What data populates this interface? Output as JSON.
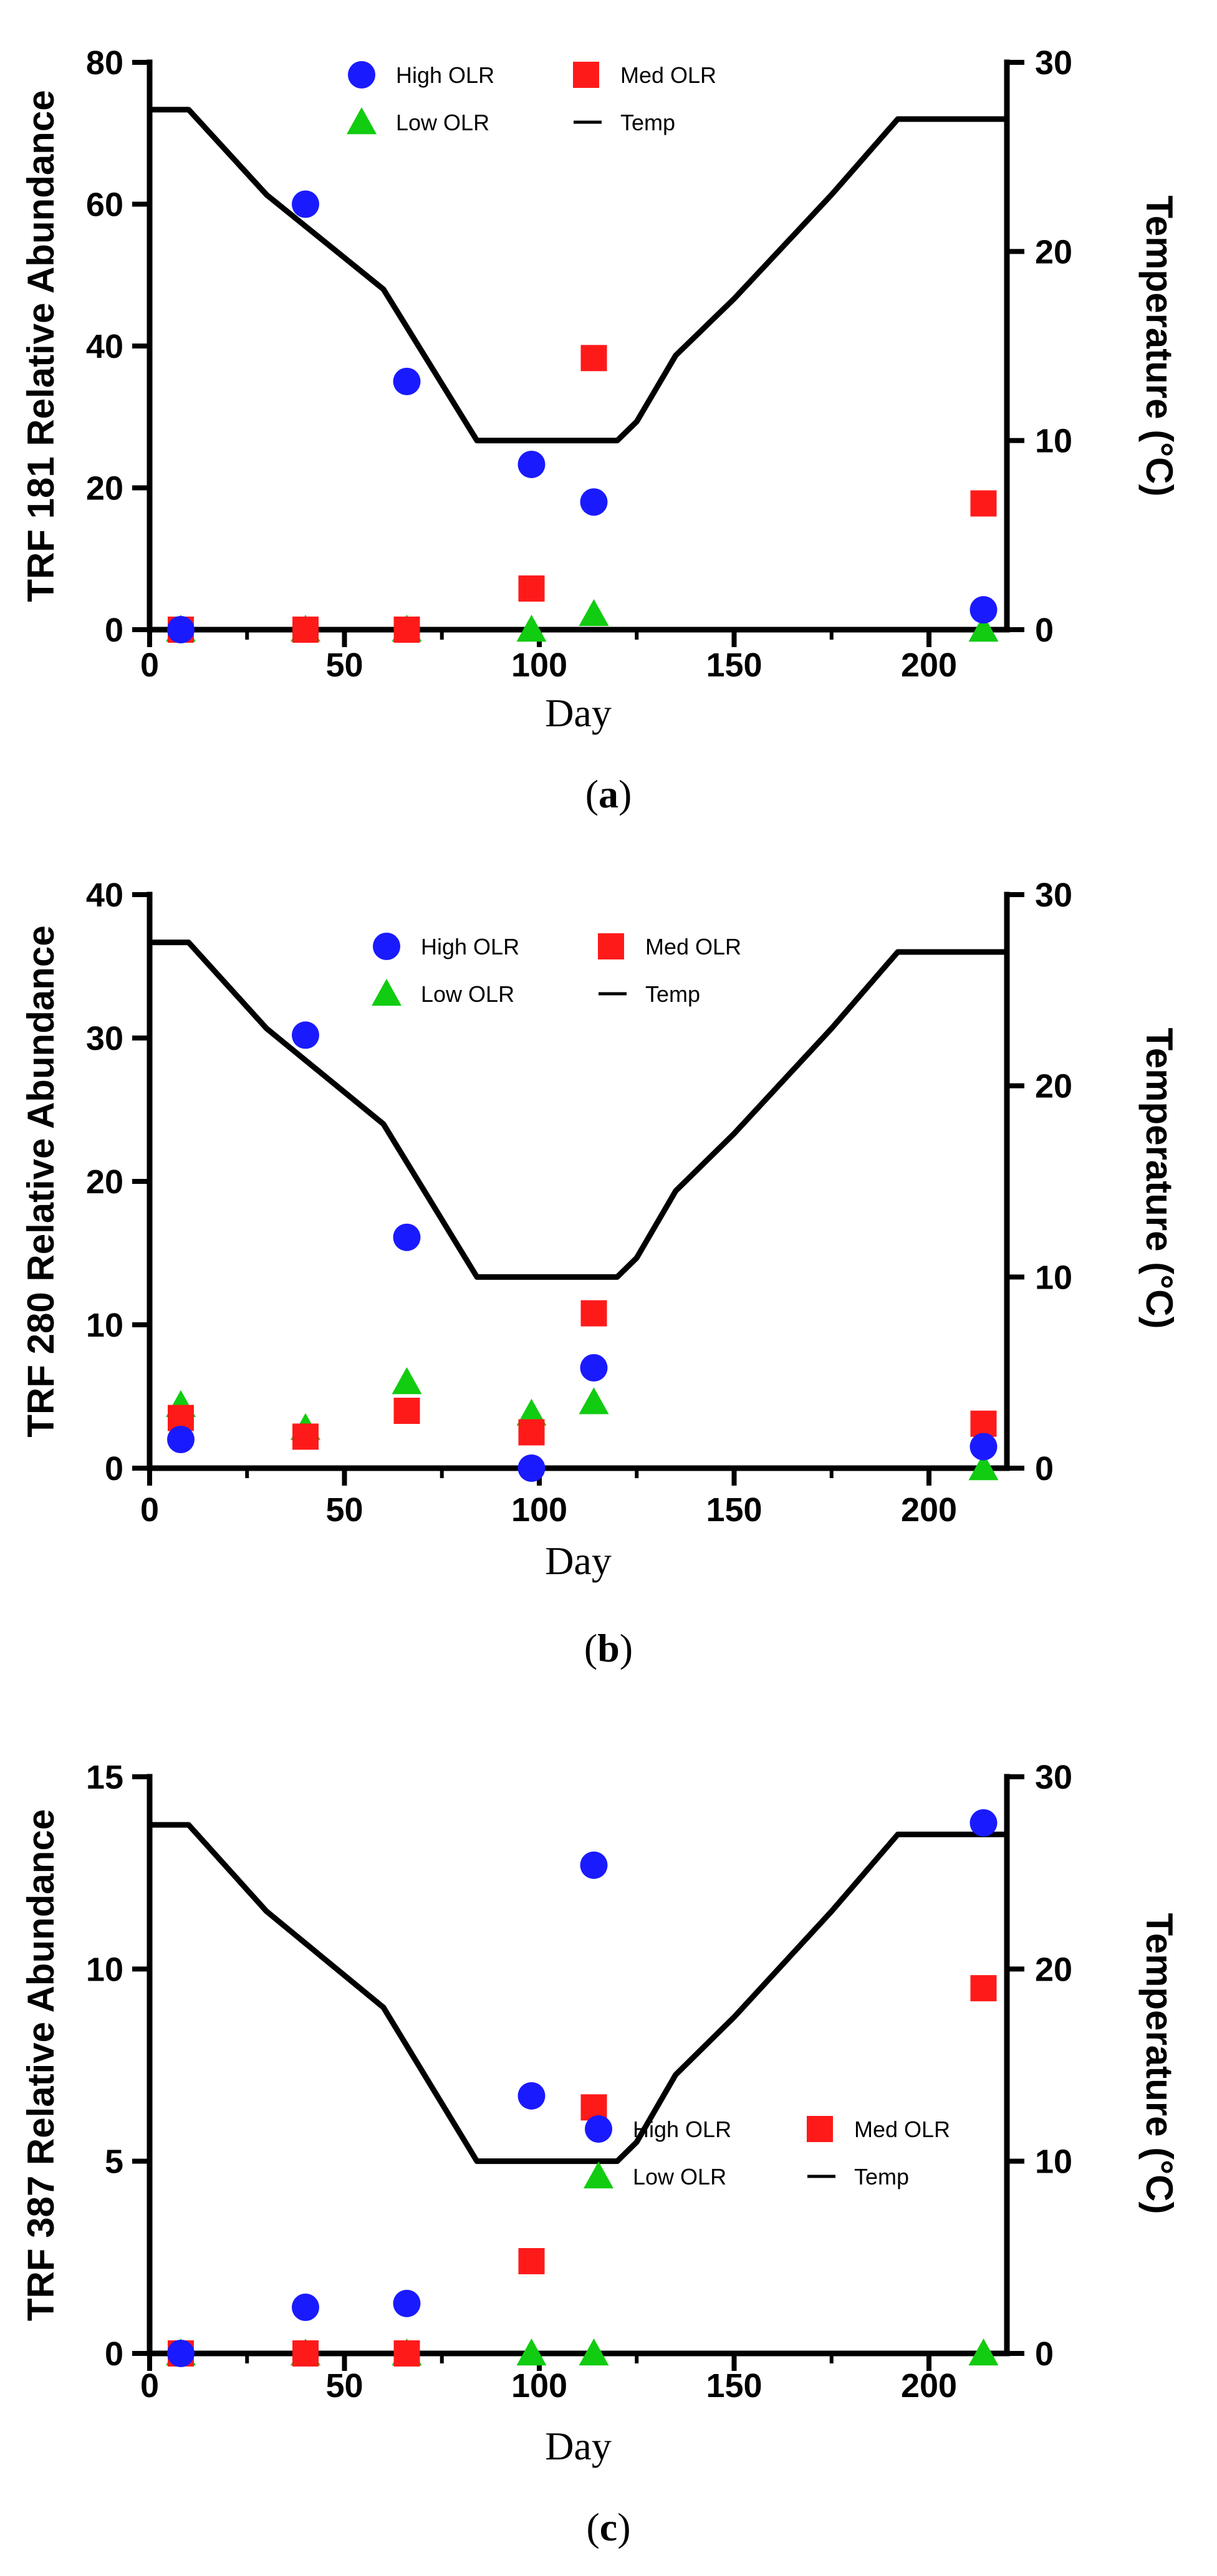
{
  "colors": {
    "high": "#1a1aff",
    "med": "#ff1a1a",
    "low": "#11cc11",
    "temp": "#000000",
    "axis": "#000000"
  },
  "chart_data": [
    {
      "type": "scatter",
      "caption_open": "(",
      "caption_letter": "a",
      "caption_close": ")",
      "xlabel": "Day",
      "ylabel": "TRF 181 Relative Abundance",
      "y2label": "Temperature (°C)",
      "xlim": [
        0,
        220
      ],
      "ylim": [
        0,
        80
      ],
      "y2lim": [
        0,
        30
      ],
      "xticks": [
        "0",
        "50",
        "100",
        "150",
        "200"
      ],
      "yticks": [
        "0",
        "20",
        "40",
        "60",
        "80"
      ],
      "y2ticks": [
        "0",
        "10",
        "20",
        "30"
      ],
      "legend": {
        "high": "High OLR",
        "med": "Med OLR",
        "low": "Low OLR",
        "temp": "Temp"
      },
      "series": [
        {
          "key": "high",
          "name": "High OLR",
          "marker": "circle",
          "x": [
            8,
            40,
            66,
            98,
            114,
            214
          ],
          "y": [
            0,
            60,
            35,
            23.3,
            18,
            2.8
          ]
        },
        {
          "key": "med",
          "name": "Med OLR",
          "marker": "square",
          "x": [
            8,
            40,
            66,
            98,
            114,
            214
          ],
          "y": [
            0,
            0,
            0,
            5.8,
            38.3,
            17.8
          ]
        },
        {
          "key": "low",
          "name": "Low OLR",
          "marker": "triangle",
          "x": [
            8,
            40,
            66,
            98,
            114,
            214
          ],
          "y": [
            0,
            0,
            0,
            0,
            2.2,
            0
          ]
        },
        {
          "key": "temp",
          "name": "Temp",
          "axis": "y2",
          "line": true,
          "x": [
            0,
            10,
            30,
            60,
            84,
            120,
            125,
            135,
            150,
            175,
            192,
            220
          ],
          "y": [
            27.5,
            27.5,
            23,
            18,
            10,
            10,
            11,
            14.5,
            17.5,
            23,
            27,
            27
          ]
        }
      ]
    },
    {
      "type": "scatter",
      "caption_open": "(",
      "caption_letter": "b",
      "caption_close": ")",
      "xlabel": "Day",
      "ylabel": "TRF 280 Relative Abundance",
      "y2label": "Temperature (°C)",
      "xlim": [
        0,
        220
      ],
      "ylim": [
        0,
        40
      ],
      "y2lim": [
        0,
        30
      ],
      "xticks": [
        "0",
        "50",
        "100",
        "150",
        "200"
      ],
      "yticks": [
        "0",
        "10",
        "20",
        "30",
        "40"
      ],
      "y2ticks": [
        "0",
        "10",
        "20",
        "30"
      ],
      "legend": {
        "high": "High OLR",
        "med": "Med OLR",
        "low": "Low OLR",
        "temp": "Temp"
      },
      "series": [
        {
          "key": "high",
          "name": "High OLR",
          "marker": "circle",
          "x": [
            8,
            40,
            66,
            98,
            114,
            214
          ],
          "y": [
            2,
            30.2,
            16.1,
            0,
            7,
            1.5
          ]
        },
        {
          "key": "med",
          "name": "Med OLR",
          "marker": "square",
          "x": [
            8,
            40,
            66,
            98,
            114,
            214
          ],
          "y": [
            3.5,
            2.2,
            4,
            2.5,
            10.8,
            3.1
          ]
        },
        {
          "key": "low",
          "name": "Low OLR",
          "marker": "triangle",
          "x": [
            8,
            40,
            66,
            98,
            114,
            214
          ],
          "y": [
            4.4,
            2.8,
            6,
            3.8,
            4.6,
            0
          ]
        },
        {
          "key": "temp",
          "name": "Temp",
          "axis": "y2",
          "line": true,
          "x": [
            0,
            10,
            30,
            60,
            84,
            120,
            125,
            135,
            150,
            175,
            192,
            220
          ],
          "y": [
            27.5,
            27.5,
            23,
            18,
            10,
            10,
            11,
            14.5,
            17.5,
            23,
            27,
            27
          ]
        }
      ]
    },
    {
      "type": "scatter",
      "caption_open": "(",
      "caption_letter": "c",
      "caption_close": ")",
      "xlabel": "Day",
      "ylabel": "TRF 387 Relative Abundance",
      "y2label": "Temperature (°C)",
      "xlim": [
        0,
        220
      ],
      "ylim": [
        0,
        15
      ],
      "y2lim": [
        0,
        30
      ],
      "xticks": [
        "0",
        "50",
        "100",
        "150",
        "200"
      ],
      "yticks": [
        "0",
        "5",
        "10",
        "15"
      ],
      "y2ticks": [
        "0",
        "10",
        "20",
        "30"
      ],
      "legend": {
        "high": "High OLR",
        "med": "Med OLR",
        "low": "Low OLR",
        "temp": "Temp"
      },
      "series": [
        {
          "key": "high",
          "name": "High OLR",
          "marker": "circle",
          "x": [
            8,
            40,
            66,
            98,
            114,
            214
          ],
          "y": [
            0,
            1.2,
            1.3,
            6.7,
            12.7,
            13.8
          ]
        },
        {
          "key": "med",
          "name": "Med OLR",
          "marker": "square",
          "x": [
            8,
            40,
            66,
            98,
            114,
            214
          ],
          "y": [
            0,
            0,
            0,
            2.4,
            6.4,
            9.5
          ]
        },
        {
          "key": "low",
          "name": "Low OLR",
          "marker": "triangle",
          "x": [
            8,
            40,
            66,
            98,
            114,
            214
          ],
          "y": [
            0,
            0,
            0,
            0,
            0,
            0
          ]
        },
        {
          "key": "temp",
          "name": "Temp",
          "axis": "y2",
          "line": true,
          "x": [
            0,
            10,
            30,
            60,
            84,
            120,
            125,
            135,
            150,
            175,
            192,
            220
          ],
          "y": [
            27.5,
            27.5,
            23,
            18,
            10,
            10,
            11,
            14.5,
            17.5,
            23,
            27,
            27
          ]
        }
      ]
    }
  ]
}
